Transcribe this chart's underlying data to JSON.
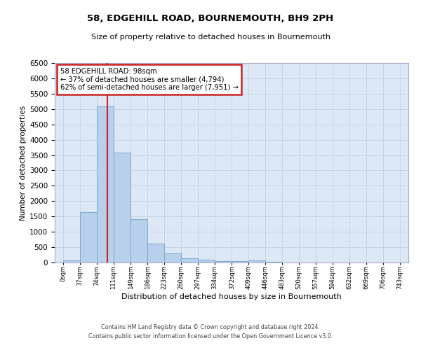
{
  "title1": "58, EDGEHILL ROAD, BOURNEMOUTH, BH9 2PH",
  "title2": "Size of property relative to detached houses in Bournemouth",
  "xlabel": "Distribution of detached houses by size in Bournemouth",
  "ylabel": "Number of detached properties",
  "footer1": "Contains HM Land Registry data © Crown copyright and database right 2024.",
  "footer2": "Contains public sector information licensed under the Open Government Licence v3.0.",
  "annotation_title": "58 EDGEHILL ROAD: 98sqm",
  "annotation_line2": "← 37% of detached houses are smaller (4,794)",
  "annotation_line3": "62% of semi-detached houses are larger (7,951) →",
  "bin_edges": [
    0,
    37,
    74,
    111,
    149,
    186,
    223,
    260,
    297,
    334,
    372,
    409,
    446,
    483,
    520,
    557,
    594,
    632,
    669,
    706,
    743
  ],
  "bar_values": [
    60,
    1640,
    5080,
    3590,
    1410,
    620,
    300,
    140,
    80,
    50,
    50,
    60,
    20,
    10,
    5,
    5,
    3,
    2,
    2,
    2
  ],
  "bar_facecolor": "#b8d0eb",
  "bar_edgecolor": "#7aaad0",
  "vline_color": "#cc2222",
  "vline_x": 98,
  "annot_edge_color": "#cc2222",
  "annot_face_color": "#ffffff",
  "grid_color": "#c8d4e4",
  "plot_bg_color": "#dce8f5",
  "fig_bg_color": "#ffffff",
  "ylim_min": 0,
  "ylim_max": 6500,
  "yticks": [
    0,
    500,
    1000,
    1500,
    2000,
    2500,
    3000,
    3500,
    4000,
    4500,
    5000,
    5500,
    6000,
    6500
  ]
}
